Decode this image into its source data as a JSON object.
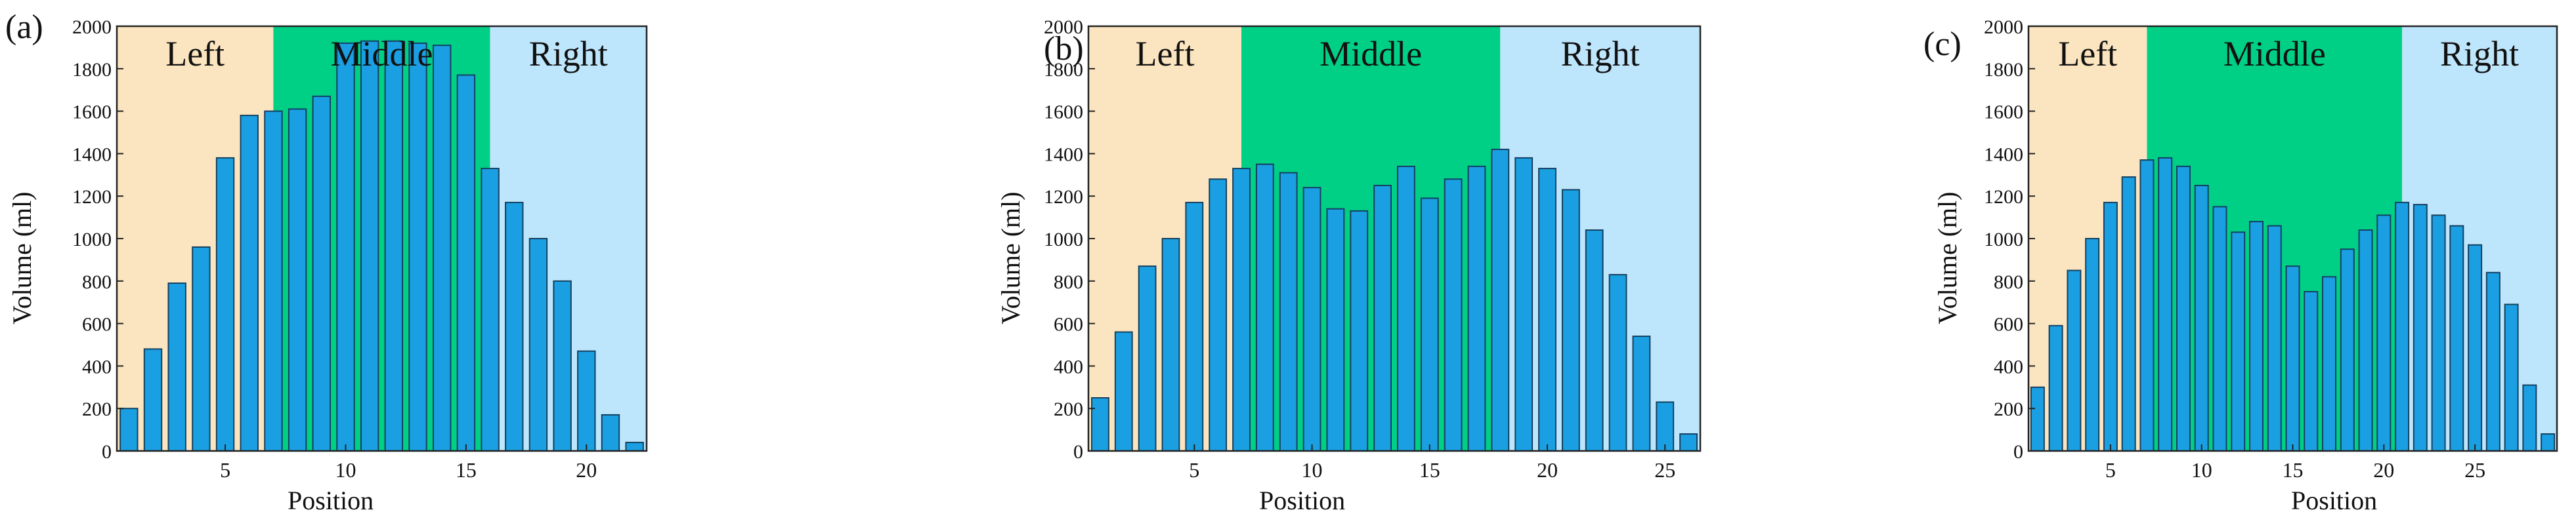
{
  "colors": {
    "left_region": "#fbe5c0",
    "middle_region": "#00cf86",
    "right_region": "#bde5fb",
    "bar_fill": "#1a9fe3",
    "bar_stroke": "#15415f"
  },
  "chart_data": [
    {
      "type": "bar",
      "panel_label": "(a)",
      "xlabel": "Position",
      "ylabel": "Volume (ml)",
      "ylim": [
        0,
        2000
      ],
      "yticks": [
        0,
        200,
        400,
        600,
        800,
        1000,
        1200,
        1400,
        1600,
        1800,
        2000
      ],
      "xticks": [
        5,
        10,
        15,
        20
      ],
      "xlim": [
        0.5,
        22.5
      ],
      "regions": [
        {
          "label": "Left",
          "start": 0.5,
          "end": 7,
          "color": "#fbe5c0"
        },
        {
          "label": "Middle",
          "start": 7,
          "end": 16,
          "color": "#00cf86"
        },
        {
          "label": "Right",
          "start": 16,
          "end": 22.5,
          "color": "#bde5fb"
        }
      ],
      "x": [
        1,
        2,
        3,
        4,
        5,
        6,
        7,
        8,
        9,
        10,
        11,
        12,
        13,
        14,
        15,
        16,
        17,
        18,
        19,
        20,
        21,
        22
      ],
      "values": [
        200,
        480,
        790,
        960,
        1380,
        1580,
        1600,
        1610,
        1670,
        1920,
        1930,
        1930,
        1920,
        1910,
        1770,
        1330,
        1170,
        1000,
        800,
        470,
        170,
        40
      ]
    },
    {
      "type": "bar",
      "panel_label": "(b)",
      "xlabel": "Position",
      "ylabel": "Volume (ml)",
      "ylim": [
        0,
        2000
      ],
      "yticks": [
        0,
        200,
        400,
        600,
        800,
        1000,
        1200,
        1400,
        1600,
        1800,
        2000
      ],
      "xticks": [
        5,
        10,
        15,
        20,
        25
      ],
      "xlim": [
        0.5,
        26.5
      ],
      "regions": [
        {
          "label": "Left",
          "start": 0.5,
          "end": 7,
          "color": "#fbe5c0"
        },
        {
          "label": "Middle",
          "start": 7,
          "end": 18,
          "color": "#00cf86"
        },
        {
          "label": "Right",
          "start": 18,
          "end": 26.5,
          "color": "#bde5fb"
        }
      ],
      "x": [
        1,
        2,
        3,
        4,
        5,
        6,
        7,
        8,
        9,
        10,
        11,
        12,
        13,
        14,
        15,
        16,
        17,
        18,
        19,
        20,
        21,
        22,
        23,
        24,
        25,
        26
      ],
      "values": [
        250,
        560,
        870,
        1000,
        1170,
        1280,
        1330,
        1350,
        1310,
        1240,
        1140,
        1130,
        1250,
        1340,
        1190,
        1280,
        1340,
        1420,
        1380,
        1330,
        1230,
        1040,
        830,
        540,
        230,
        80
      ]
    },
    {
      "type": "bar",
      "panel_label": "(c)",
      "xlabel": "Position",
      "ylabel": "Volume (ml)",
      "ylim": [
        0,
        2000
      ],
      "yticks": [
        0,
        200,
        400,
        600,
        800,
        1000,
        1200,
        1400,
        1600,
        1800,
        2000
      ],
      "xticks": [
        5,
        10,
        15,
        20,
        25
      ],
      "xlim": [
        0.5,
        29.5
      ],
      "regions": [
        {
          "label": "Left",
          "start": 0.5,
          "end": 7,
          "color": "#fbe5c0"
        },
        {
          "label": "Middle",
          "start": 7,
          "end": 21,
          "color": "#00cf86"
        },
        {
          "label": "Right",
          "start": 21,
          "end": 29.5,
          "color": "#bde5fb"
        }
      ],
      "x": [
        1,
        2,
        3,
        4,
        5,
        6,
        7,
        8,
        9,
        10,
        11,
        12,
        13,
        14,
        15,
        16,
        17,
        18,
        19,
        20,
        21,
        22,
        23,
        24,
        25,
        26,
        27,
        28,
        29
      ],
      "values": [
        300,
        590,
        850,
        1000,
        1170,
        1290,
        1370,
        1380,
        1340,
        1250,
        1150,
        1030,
        1080,
        1060,
        870,
        750,
        820,
        950,
        1040,
        1110,
        1170,
        1160,
        1110,
        1060,
        970,
        840,
        690,
        310,
        80
      ]
    }
  ]
}
